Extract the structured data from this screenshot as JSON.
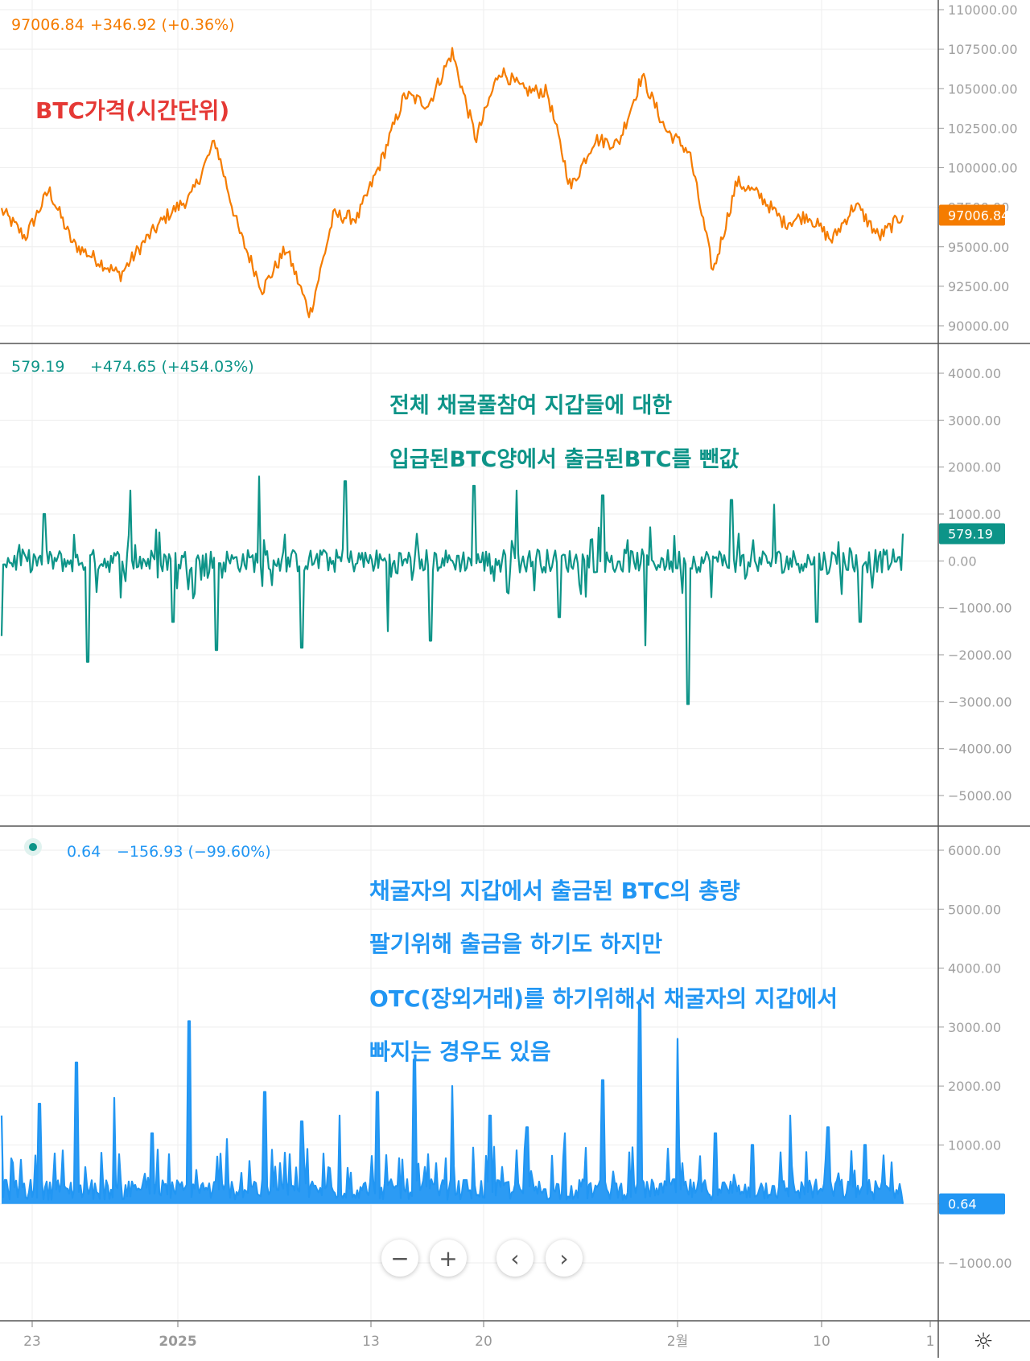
{
  "chart_data": [
    {
      "type": "line",
      "title": "BTC가격(시간단위)",
      "legend": {
        "value": "97006.84",
        "change": "+346.92 (+0.36%)"
      },
      "y_ticks": [
        "110000.00",
        "107500.00",
        "105000.00",
        "102500.00",
        "100000.00",
        "97500.00",
        "95000.00",
        "92500.00",
        "90000.00"
      ],
      "ylim": [
        89500,
        110500
      ],
      "last_value_label": "97006.84",
      "color": "#f57c00",
      "series": [
        {
          "x": [
            "12-21",
            "12-23",
            "12-25",
            "12-27",
            "12-29",
            "12-30",
            "1-1",
            "1-3",
            "1-5",
            "1-7",
            "1-8",
            "1-10",
            "1-11",
            "1-13",
            "1-14",
            "1-15",
            "1-16",
            "1-17",
            "1-18",
            "1-19",
            "1-20",
            "1-21",
            "1-22",
            "1-24",
            "1-26",
            "1-27",
            "1-28",
            "1-30",
            "2-1",
            "2-2",
            "2-3",
            "2-4",
            "2-5",
            "2-6",
            "2-8",
            "2-10",
            "2-12",
            "2-14",
            "2-16"
          ],
          "values": [
            97300,
            95600,
            98600,
            95200,
            94200,
            93200,
            95300,
            97000,
            98200,
            101700,
            96000,
            92300,
            94900,
            90700,
            97000,
            96800,
            100400,
            104600,
            104000,
            107300,
            101800,
            106200,
            104900,
            104800,
            98700,
            101800,
            101500,
            105800,
            102400,
            101000,
            93400,
            99100,
            98200,
            96500,
            97000,
            95400,
            97700,
            95600,
            97000
          ]
        }
      ]
    },
    {
      "type": "line",
      "title": "전체 채굴풀참여 지갑들에 대한 입급된BTC양에서 출금된BTC를 뺀값",
      "legend": {
        "value": "579.19",
        "change": "+474.65 (+454.03%)"
      },
      "y_ticks": [
        "4000.00",
        "3000.00",
        "2000.00",
        "1000.00",
        "0.00",
        "−1000.00",
        "−2000.00",
        "−3000.00",
        "−4000.00",
        "−5000.00"
      ],
      "ylim": [
        -5500,
        4500
      ],
      "last_value_label": "579.19",
      "color": "#0d9488",
      "series": [
        {
          "x": [
            "12-22",
            "12-25",
            "12-30",
            "12-31",
            "1-5",
            "1-9",
            "1-10",
            "1-11",
            "1-13",
            "1-16",
            "1-18",
            "1-20",
            "1-22",
            "1-24",
            "1-27",
            "1-31",
            "2-3",
            "2-3b",
            "2-5",
            "2-12",
            "2-13",
            "2-16"
          ],
          "values": [
            -1600,
            1000,
            -2150,
            1500,
            -1300,
            -1900,
            1800,
            -1850,
            1700,
            -1500,
            -1700,
            1600,
            1500,
            -1200,
            1400,
            -1800,
            -3050,
            1300,
            1200,
            -1300,
            -1300,
            579.19
          ]
        }
      ]
    },
    {
      "type": "area",
      "title": "채굴자의 지갑에서 출금된 BTC의 총량 팔기위해 출금을 하기도 하지만 OTC(장외거래)를 하기위해서 채굴자의 지갑에서 빠지는 경우도 있음",
      "legend": {
        "value": "0.64",
        "change": "−156.93 (−99.60%)"
      },
      "y_ticks": [
        "6000.00",
        "5000.00",
        "4000.00",
        "3000.00",
        "2000.00",
        "1000.00",
        "0.00",
        "−1000.00"
      ],
      "ylim": [
        -1500,
        6500
      ],
      "last_value_label": "0.64",
      "color": "#2196f3",
      "series": [
        {
          "x": [
            "12-22",
            "12-25",
            "12-30",
            "1-1",
            "1-4",
            "1-8",
            "1-9",
            "1-10",
            "1-12",
            "1-14",
            "1-18",
            "1-20",
            "1-21",
            "1-23",
            "1-27",
            "1-31",
            "2-2",
            "2-3",
            "2-4",
            "2-6",
            "2-8",
            "2-11",
            "2-12",
            "2-13",
            "2-16"
          ],
          "values": [
            1500,
            1700,
            2400,
            1800,
            1200,
            3100,
            1100,
            1900,
            1400,
            1500,
            1900,
            2450,
            2000,
            1500,
            1300,
            1200,
            2100,
            3400,
            2800,
            1200,
            1000,
            1500,
            1300,
            1000,
            0.64
          ]
        }
      ]
    }
  ],
  "x_axis": {
    "tick_labels": [
      "23",
      "2025",
      "13",
      "20",
      "2월",
      "10",
      "1"
    ]
  },
  "controls": {
    "zoom_out": "−",
    "zoom_in": "+",
    "prev": "‹",
    "next": "›",
    "settings_icon": "☼"
  }
}
